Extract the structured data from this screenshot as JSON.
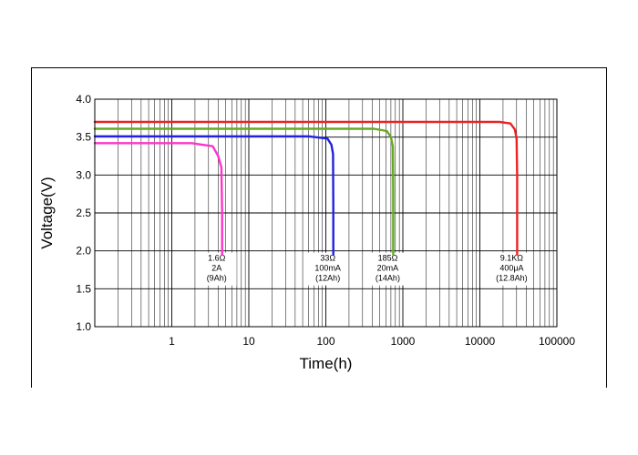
{
  "chart_data": {
    "type": "line",
    "title": "",
    "xlabel": "Time(h)",
    "ylabel": "Voltage(V)",
    "xscale": "log",
    "xlim": [
      0.1,
      100000
    ],
    "ylim": [
      1.0,
      4.0
    ],
    "x_ticks": [
      1,
      10,
      100,
      1000,
      10000,
      100000
    ],
    "x_tick_labels": [
      "1",
      "10",
      "100",
      "1000",
      "10000",
      "100000"
    ],
    "y_ticks": [
      1.0,
      1.5,
      2.0,
      2.5,
      3.0,
      3.5,
      4.0
    ],
    "y_tick_labels": [
      "1.0",
      "1.5",
      "2.0",
      "2.5",
      "3.0",
      "3.5",
      "4.0"
    ],
    "grid": true,
    "series": [
      {
        "name": "1.6Ω",
        "color": "#ff33cc",
        "x": [
          0.1,
          1.8,
          3.4,
          4.0,
          4.4,
          4.5,
          4.5
        ],
        "y": [
          3.42,
          3.42,
          3.38,
          3.25,
          3.1,
          2.5,
          1.95
        ],
        "annotation": [
          "1.6Ω",
          "2A",
          "(9Ah)"
        ]
      },
      {
        "name": "33Ω",
        "color": "#2222dd",
        "x": [
          0.1,
          60,
          105,
          118,
          124,
          125,
          125
        ],
        "y": [
          3.51,
          3.51,
          3.48,
          3.4,
          3.28,
          2.6,
          1.95
        ],
        "annotation": [
          "33Ω",
          "100mA",
          "(12Ah)"
        ]
      },
      {
        "name": "185Ω",
        "color": "#66aa22",
        "x": [
          0.1,
          420,
          620,
          700,
          740,
          750,
          750
        ],
        "y": [
          3.61,
          3.61,
          3.58,
          3.5,
          3.38,
          2.8,
          1.95
        ],
        "annotation": [
          "185Ω",
          "20mA",
          "(14Ah)"
        ]
      },
      {
        "name": "9.1KΩ",
        "color": "#ee2222",
        "x": [
          0.1,
          18000,
          25000,
          28500,
          30000,
          30500,
          30500
        ],
        "y": [
          3.7,
          3.7,
          3.68,
          3.6,
          3.48,
          3.0,
          1.95
        ],
        "annotation": [
          "9.1KΩ",
          "400μA",
          "(12.8Ah)"
        ]
      }
    ]
  }
}
